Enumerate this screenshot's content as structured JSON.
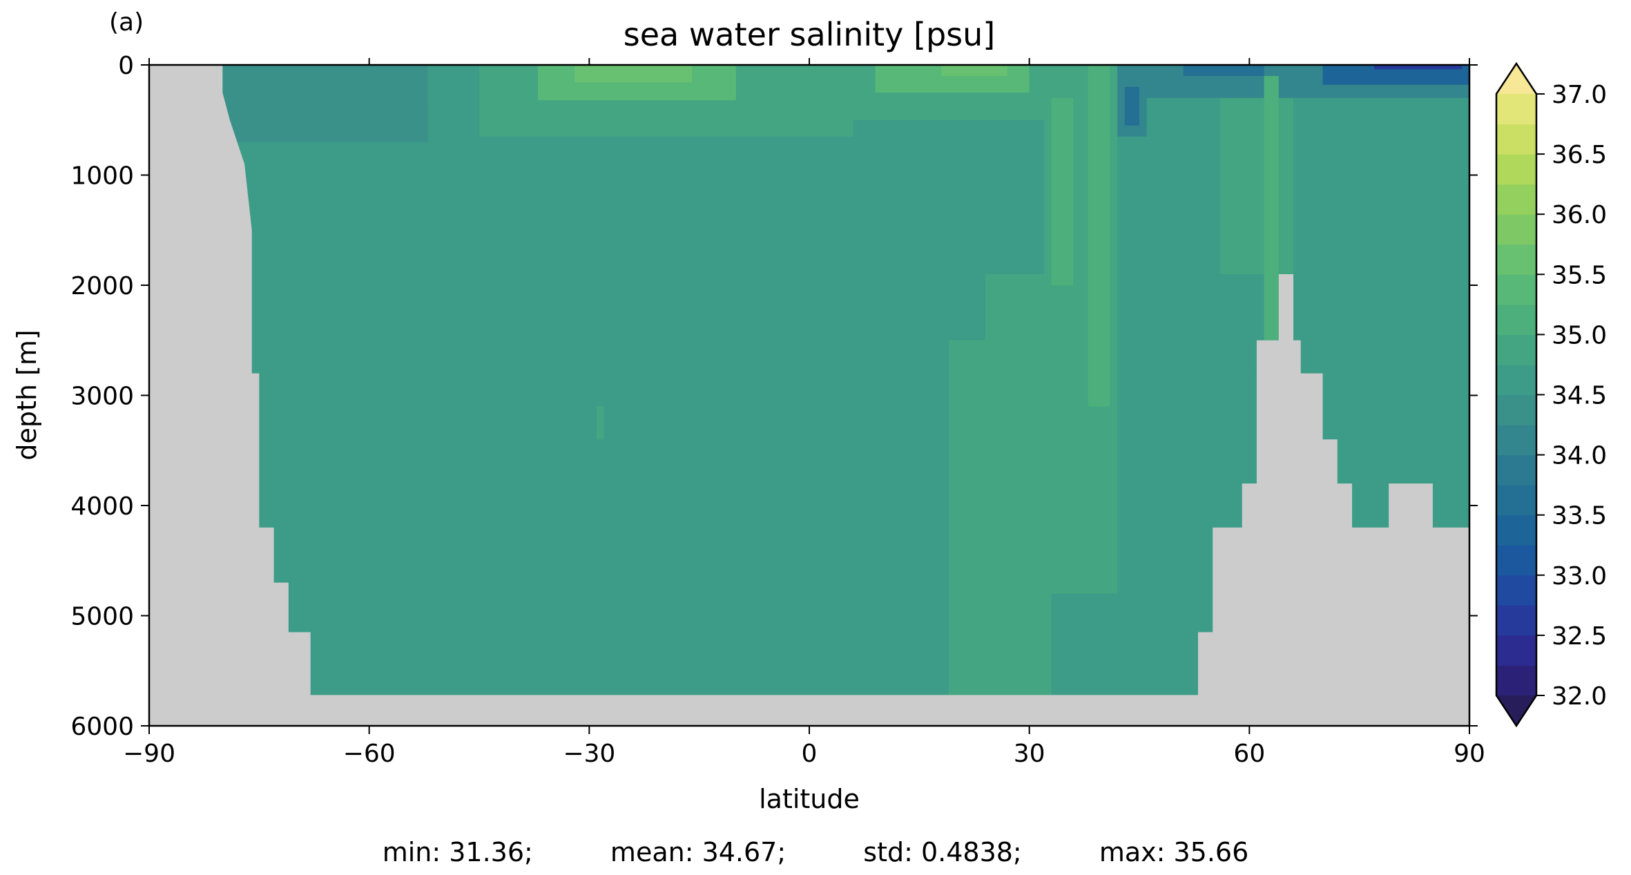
{
  "panel_label": "(a)",
  "stats": {
    "min": "min: 31.36;",
    "mean": "mean: 34.67;",
    "std": "std: 0.4838;",
    "max": "max: 35.66"
  },
  "chart_data": {
    "type": "heatmap",
    "title": "sea water salinity [psu]",
    "xlabel": "latitude",
    "ylabel": "depth [m]",
    "xlim": [
      -90,
      90
    ],
    "ylim": [
      6000,
      0
    ],
    "x_ticks": [
      -90,
      -60,
      -30,
      0,
      30,
      60,
      90
    ],
    "x_tick_labels": [
      "−90",
      "−60",
      "−30",
      "0",
      "30",
      "60",
      "90"
    ],
    "y_ticks": [
      0,
      1000,
      2000,
      3000,
      4000,
      5000,
      6000
    ],
    "y_tick_labels": [
      "0",
      "1000",
      "2000",
      "3000",
      "4000",
      "5000",
      "6000"
    ],
    "colorbar": {
      "ticks": [
        32.0,
        32.5,
        33.0,
        33.5,
        34.0,
        34.5,
        35.0,
        35.5,
        36.0,
        36.5,
        37.0
      ],
      "tick_labels": [
        "32.0",
        "32.5",
        "33.0",
        "33.5",
        "34.0",
        "34.5",
        "35.0",
        "35.5",
        "36.0",
        "36.5",
        "37.0"
      ],
      "levels": [
        32.0,
        32.25,
        32.5,
        32.75,
        33.0,
        33.25,
        33.5,
        33.75,
        34.0,
        34.25,
        34.5,
        34.75,
        35.0,
        35.25,
        35.5,
        35.75,
        36.0,
        36.25,
        36.5,
        36.75,
        37.0
      ],
      "colors": [
        "#2b2277",
        "#2c2b8f",
        "#263a9b",
        "#1f4aa0",
        "#1b589e",
        "#1d6498",
        "#246f94",
        "#2b7a91",
        "#33868d",
        "#3a918a",
        "#3d9c87",
        "#44a582",
        "#4caf7c",
        "#58b877",
        "#67c170",
        "#7ec965",
        "#94d05d",
        "#b0d85a",
        "#cadf63",
        "#e2e577",
        "#f1e890"
      ],
      "extend": "both",
      "under_color": "#261d5a",
      "over_color": "#f7e897"
    },
    "land_color": "#cccccc",
    "bathymetry": [
      [
        -90,
        0
      ],
      [
        -80,
        0
      ],
      [
        -80,
        250
      ],
      [
        -79,
        500
      ],
      [
        -78,
        700
      ],
      [
        -77,
        900
      ],
      [
        -76,
        1500
      ],
      [
        -76,
        2800
      ],
      [
        -75,
        2800
      ],
      [
        -75,
        4200
      ],
      [
        -73,
        4200
      ],
      [
        -73,
        4700
      ],
      [
        -71,
        4700
      ],
      [
        -71,
        5150
      ],
      [
        -68,
        5150
      ],
      [
        -68,
        5720
      ],
      [
        53,
        5720
      ],
      [
        53,
        5150
      ],
      [
        55,
        5150
      ],
      [
        55,
        4200
      ],
      [
        59,
        4200
      ],
      [
        59,
        3800
      ],
      [
        61,
        3800
      ],
      [
        61,
        2500
      ],
      [
        64,
        2500
      ],
      [
        64,
        1900
      ],
      [
        66,
        1900
      ],
      [
        66,
        2500
      ],
      [
        67,
        2500
      ],
      [
        67,
        2800
      ],
      [
        70,
        2800
      ],
      [
        70,
        3400
      ],
      [
        72,
        3400
      ],
      [
        72,
        3800
      ],
      [
        74,
        3800
      ],
      [
        74,
        4200
      ],
      [
        79,
        4200
      ],
      [
        79,
        3800
      ],
      [
        85,
        3800
      ],
      [
        85,
        4200
      ],
      [
        90,
        4200
      ],
      [
        90,
        6000
      ],
      [
        -90,
        6000
      ]
    ],
    "salinity_regions": [
      {
        "x": [
          -80,
          90
        ],
        "y": [
          0,
          6000
        ],
        "value": 34.67
      },
      {
        "x": [
          -80,
          -52
        ],
        "y": [
          0,
          700
        ],
        "value": 34.3
      },
      {
        "x": [
          -52,
          -47
        ],
        "y": [
          0,
          400
        ],
        "value": 34.5
      },
      {
        "x": [
          -45,
          6
        ],
        "y": [
          0,
          650
        ],
        "value": 34.9
      },
      {
        "x": [
          -37,
          -10
        ],
        "y": [
          0,
          320
        ],
        "value": 35.25
      },
      {
        "x": [
          -32,
          -16
        ],
        "y": [
          0,
          160
        ],
        "value": 35.55
      },
      {
        "x": [
          6,
          34
        ],
        "y": [
          0,
          500
        ],
        "value": 34.9
      },
      {
        "x": [
          9,
          30
        ],
        "y": [
          0,
          250
        ],
        "value": 35.25
      },
      {
        "x": [
          18,
          27
        ],
        "y": [
          0,
          100
        ],
        "value": 35.55
      },
      {
        "x": [
          19,
          33
        ],
        "y": [
          2500,
          5720
        ],
        "value": 34.9
      },
      {
        "x": [
          24,
          35
        ],
        "y": [
          1900,
          2600
        ],
        "value": 34.9
      },
      {
        "x": [
          32,
          42
        ],
        "y": [
          0,
          4800
        ],
        "value": 34.9
      },
      {
        "x": [
          33,
          36
        ],
        "y": [
          300,
          2000
        ],
        "value": 35.15
      },
      {
        "x": [
          38,
          41
        ],
        "y": [
          0,
          3100
        ],
        "value": 35.15
      },
      {
        "x": [
          42,
          46
        ],
        "y": [
          0,
          650
        ],
        "value": 34.0
      },
      {
        "x": [
          43,
          45
        ],
        "y": [
          200,
          550
        ],
        "value": 33.6
      },
      {
        "x": [
          46,
          90
        ],
        "y": [
          0,
          300
        ],
        "value": 34.1
      },
      {
        "x": [
          51,
          62
        ],
        "y": [
          0,
          100
        ],
        "value": 33.6
      },
      {
        "x": [
          70,
          90
        ],
        "y": [
          0,
          180
        ],
        "value": 33.4
      },
      {
        "x": [
          77,
          89
        ],
        "y": [
          0,
          40
        ],
        "value": 32.6
      },
      {
        "x": [
          56,
          66
        ],
        "y": [
          300,
          1900
        ],
        "value": 34.9
      },
      {
        "x": [
          62,
          64
        ],
        "y": [
          100,
          2500
        ],
        "value": 35.15
      },
      {
        "x": [
          -29,
          -28
        ],
        "y": [
          3100,
          3400
        ],
        "value": 34.9
      }
    ]
  }
}
